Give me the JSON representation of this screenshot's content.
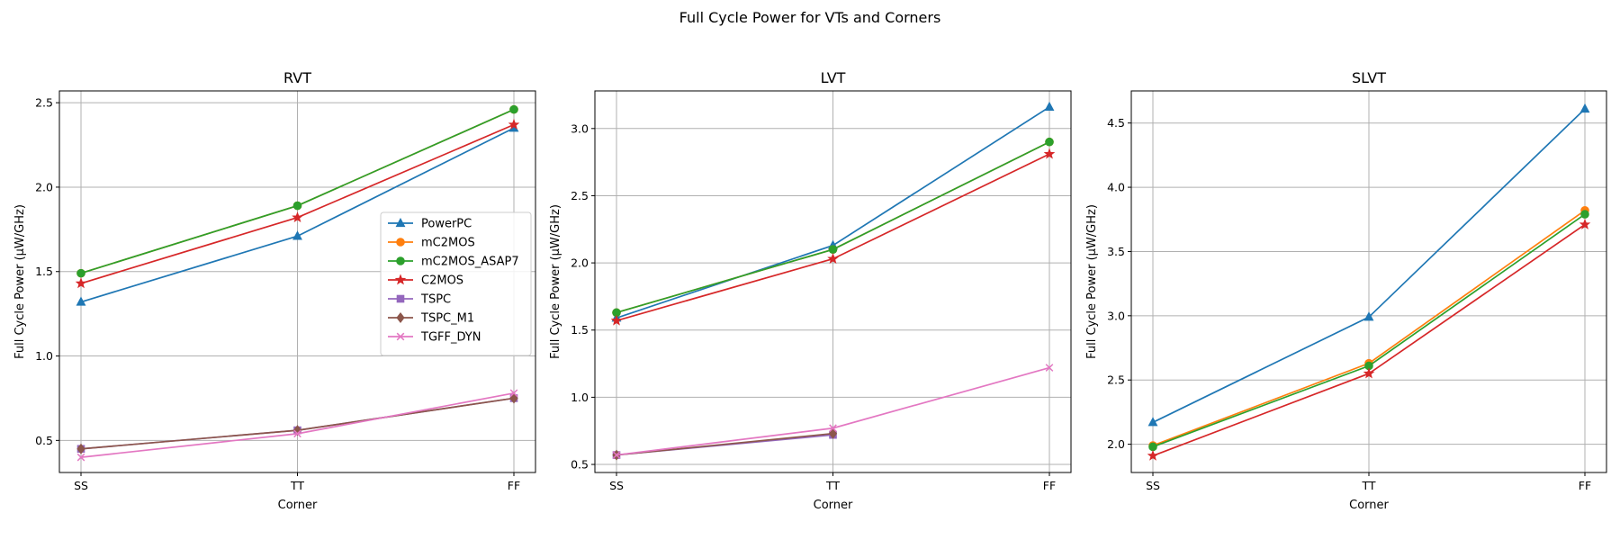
{
  "figure": {
    "title": "Full Cycle Power for VTs and Corners"
  },
  "series_style": {
    "PowerPC": {
      "color": "#1f77b4",
      "marker": "triangle"
    },
    "mC2MOS": {
      "color": "#ff7f0e",
      "marker": "circle"
    },
    "mC2MOS_ASAP7": {
      "color": "#2ca02c",
      "marker": "circle"
    },
    "C2MOS": {
      "color": "#d62728",
      "marker": "star"
    },
    "TSPC": {
      "color": "#9467bd",
      "marker": "square"
    },
    "TSPC_M1": {
      "color": "#8c564b",
      "marker": "diamond"
    },
    "TGFF_DYN": {
      "color": "#e377c2",
      "marker": "x"
    }
  },
  "chart_data": [
    {
      "type": "line",
      "title": "RVT",
      "xlabel": "Corner",
      "ylabel": "Full Cycle Power (µW/GHz)",
      "categories": [
        "SS",
        "TT",
        "FF"
      ],
      "ylim": [
        0.31,
        2.57
      ],
      "yticks": [
        0.5,
        1.0,
        1.5,
        2.0,
        2.5
      ],
      "ytick_labels": [
        "0.5",
        "1.0",
        "1.5",
        "2.0",
        "2.5"
      ],
      "grid": true,
      "legend": {
        "placement": "center-right"
      },
      "series": [
        {
          "name": "PowerPC",
          "values": [
            1.32,
            1.71,
            2.35
          ]
        },
        {
          "name": "mC2MOS",
          "values": [
            1.49,
            1.89,
            2.46
          ]
        },
        {
          "name": "mC2MOS_ASAP7",
          "values": [
            1.49,
            1.89,
            2.46
          ]
        },
        {
          "name": "C2MOS",
          "values": [
            1.43,
            1.82,
            2.37
          ]
        },
        {
          "name": "TSPC",
          "values": [
            0.45,
            0.56,
            0.75
          ]
        },
        {
          "name": "TSPC_M1",
          "values": [
            0.45,
            0.56,
            0.75
          ]
        },
        {
          "name": "TGFF_DYN",
          "values": [
            0.4,
            0.54,
            0.78
          ]
        }
      ]
    },
    {
      "type": "line",
      "title": "LVT",
      "xlabel": "Corner",
      "ylabel": "Full Cycle Power (µW/GHz)",
      "categories": [
        "SS",
        "TT",
        "FF"
      ],
      "ylim": [
        0.44,
        3.28
      ],
      "yticks": [
        0.5,
        1.0,
        1.5,
        2.0,
        2.5,
        3.0
      ],
      "ytick_labels": [
        "0.5",
        "1.0",
        "1.5",
        "2.0",
        "2.5",
        "3.0"
      ],
      "grid": true,
      "series": [
        {
          "name": "PowerPC",
          "values": [
            1.59,
            2.13,
            3.16
          ]
        },
        {
          "name": "mC2MOS",
          "values": [
            1.63,
            2.1,
            2.9
          ]
        },
        {
          "name": "mC2MOS_ASAP7",
          "values": [
            1.63,
            2.1,
            2.9
          ]
        },
        {
          "name": "C2MOS",
          "values": [
            1.57,
            2.03,
            2.81
          ]
        },
        {
          "name": "TSPC",
          "values": [
            0.57,
            0.72,
            null
          ]
        },
        {
          "name": "TSPC_M1",
          "values": [
            0.57,
            0.73,
            null
          ]
        },
        {
          "name": "TGFF_DYN",
          "values": [
            0.57,
            0.77,
            1.22
          ]
        }
      ]
    },
    {
      "type": "line",
      "title": "SLVT",
      "xlabel": "Corner",
      "ylabel": "Full Cycle Power (µW/GHz)",
      "categories": [
        "SS",
        "TT",
        "FF"
      ],
      "ylim": [
        1.78,
        4.75
      ],
      "yticks": [
        2.0,
        2.5,
        3.0,
        3.5,
        4.0,
        4.5
      ],
      "ytick_labels": [
        "2.0",
        "2.5",
        "3.0",
        "3.5",
        "4.0",
        "4.5"
      ],
      "grid": true,
      "series": [
        {
          "name": "PowerPC",
          "values": [
            2.17,
            2.99,
            4.61
          ]
        },
        {
          "name": "mC2MOS",
          "values": [
            1.99,
            2.63,
            3.82
          ]
        },
        {
          "name": "mC2MOS_ASAP7",
          "values": [
            1.98,
            2.61,
            3.79
          ]
        },
        {
          "name": "C2MOS",
          "values": [
            1.91,
            2.55,
            3.71
          ]
        }
      ]
    }
  ]
}
